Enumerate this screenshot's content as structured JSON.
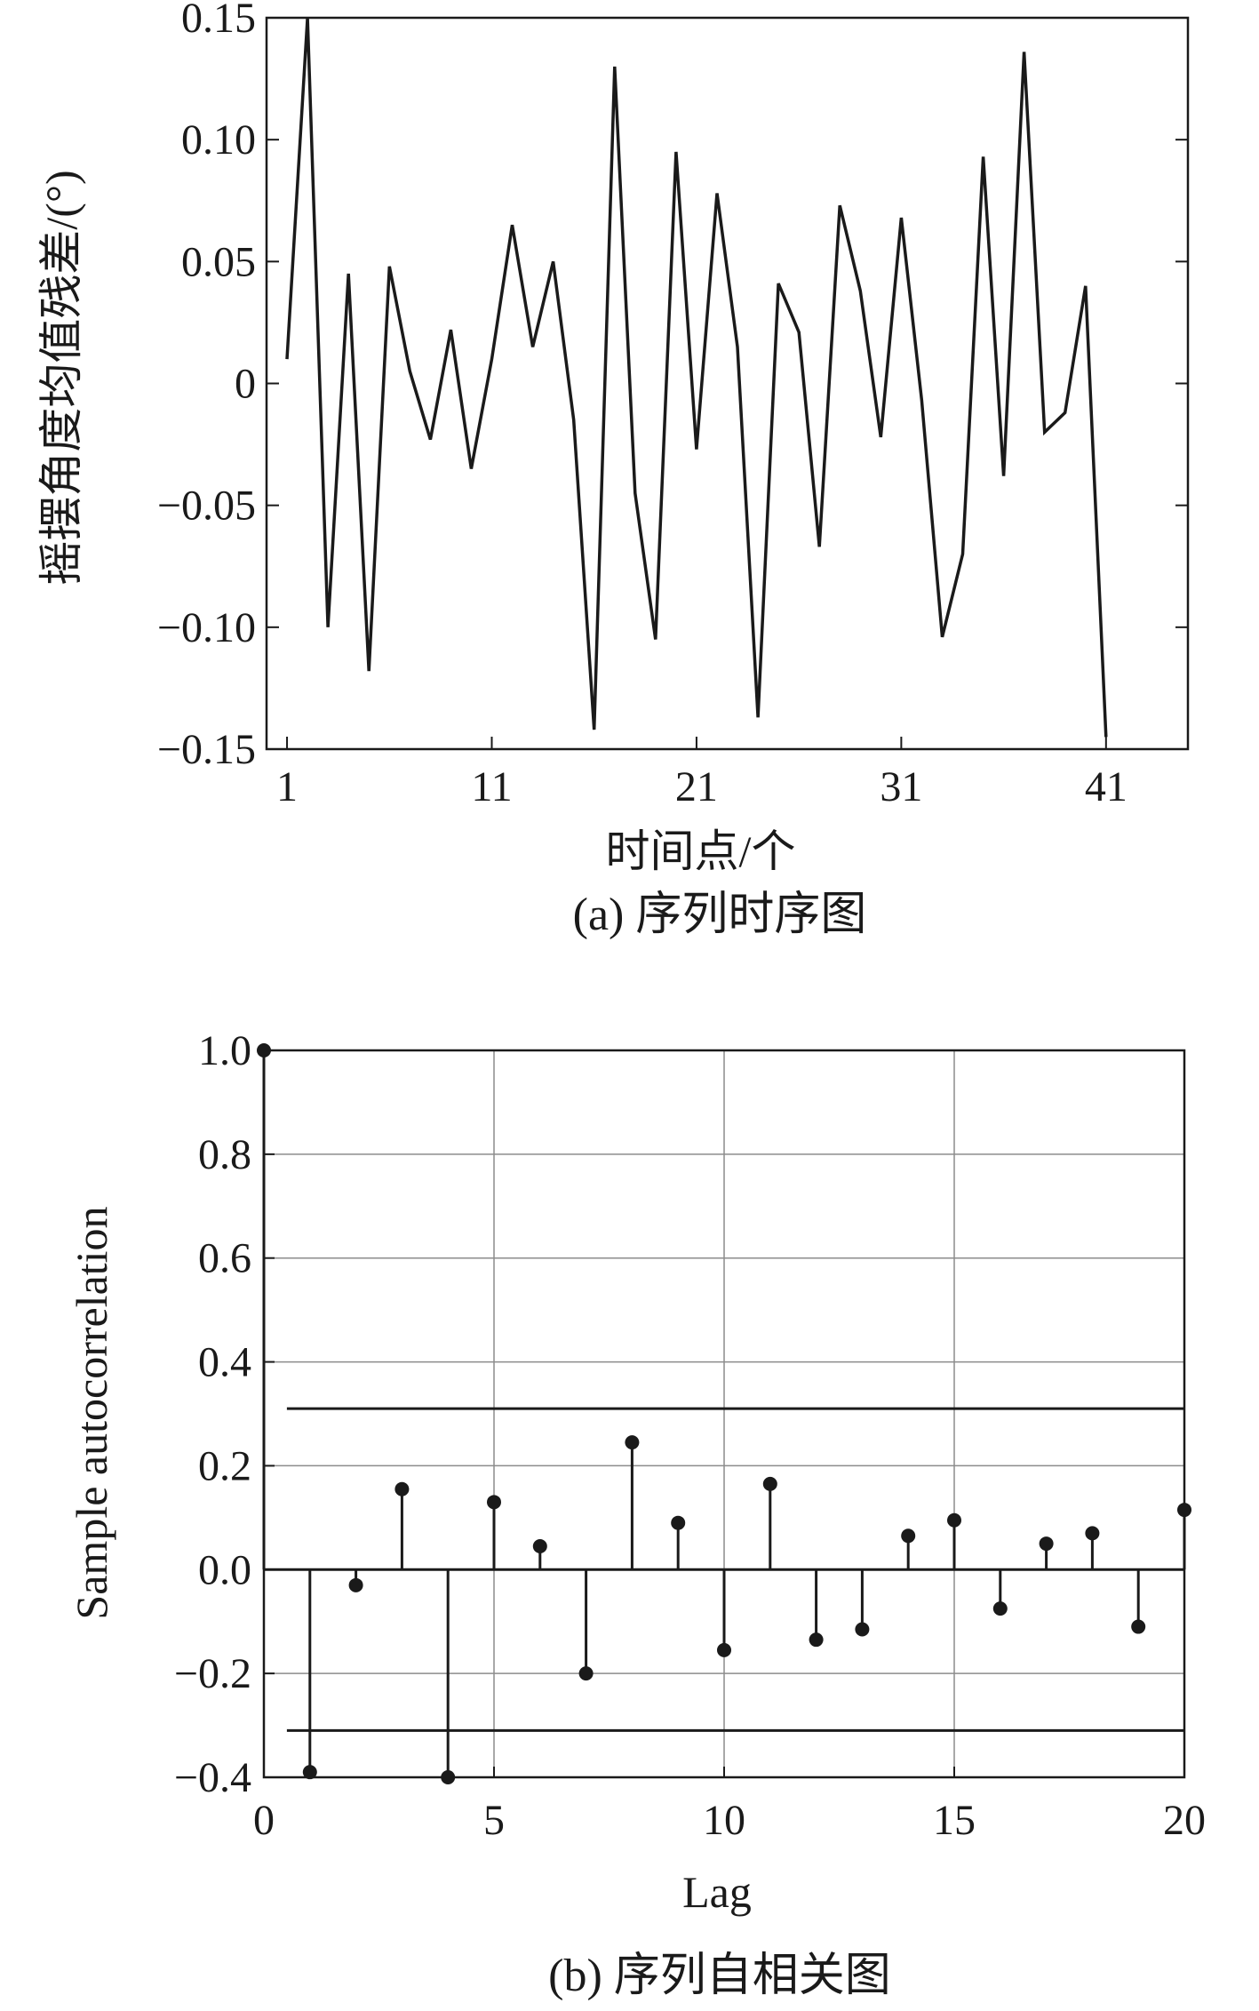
{
  "chart_data": [
    {
      "type": "line",
      "caption": "(a) 序列时序图",
      "xlabel": "时间点/个",
      "ylabel": "摇摆角度均值残差/(°)",
      "xlim": [
        0,
        45
      ],
      "ylim": [
        -0.15,
        0.15
      ],
      "xticks": [
        "1",
        "11",
        "21",
        "31",
        "41"
      ],
      "xtick_values": [
        1,
        11,
        21,
        31,
        41
      ],
      "yticks": [
        "0.15",
        "0.10",
        "0.05",
        "0",
        "−0.05",
        "−0.10",
        "−0.15"
      ],
      "ytick_values": [
        0.15,
        0.1,
        0.05,
        0,
        -0.05,
        -0.1,
        -0.15
      ],
      "grid": false,
      "series": [
        {
          "x": [
            1,
            2,
            3,
            4,
            5,
            6,
            7,
            8,
            9,
            10,
            11,
            12,
            13,
            14,
            15,
            16,
            17,
            18,
            19,
            20,
            21,
            22,
            23,
            24,
            25,
            26,
            27,
            28,
            29,
            30,
            31,
            32,
            33,
            34,
            35,
            36,
            37,
            38,
            39,
            40,
            41
          ],
          "y": [
            0.01,
            0.15,
            -0.1,
            0.045,
            -0.118,
            0.048,
            0.005,
            -0.023,
            0.022,
            -0.035,
            0.01,
            0.065,
            0.015,
            0.05,
            -0.015,
            -0.142,
            0.13,
            -0.045,
            -0.105,
            0.095,
            -0.027,
            0.078,
            0.015,
            -0.137,
            0.041,
            0.021,
            -0.067,
            0.073,
            0.038,
            -0.022,
            0.068,
            -0.007,
            -0.104,
            -0.07,
            0.093,
            -0.038,
            0.136,
            -0.02,
            -0.012,
            0.04,
            -0.145
          ]
        }
      ]
    },
    {
      "type": "stem",
      "caption": "(b) 序列自相关图",
      "xlabel": "Lag",
      "ylabel": "Sample autocorrelation",
      "xlim": [
        0,
        20
      ],
      "ylim": [
        -0.4,
        1.0
      ],
      "xticks": [
        "0",
        "5",
        "10",
        "15",
        "20"
      ],
      "xtick_values": [
        0,
        5,
        10,
        15,
        20
      ],
      "yticks": [
        "1.0",
        "0.8",
        "0.6",
        "0.4",
        "0.2",
        "0.0",
        "−0.2",
        "−0.4"
      ],
      "ytick_values": [
        1.0,
        0.8,
        0.6,
        0.4,
        0.2,
        0.0,
        -0.2,
        -0.4
      ],
      "grid": true,
      "confidence_bounds": [
        0.31,
        -0.31
      ],
      "series": [
        {
          "x": [
            0,
            1,
            2,
            3,
            4,
            5,
            6,
            7,
            8,
            9,
            10,
            11,
            12,
            13,
            14,
            15,
            16,
            17,
            18,
            19,
            20
          ],
          "y": [
            1.0,
            -0.39,
            -0.03,
            0.155,
            -0.4,
            0.13,
            0.045,
            -0.2,
            0.245,
            0.09,
            -0.155,
            0.165,
            -0.135,
            -0.115,
            0.065,
            0.095,
            -0.075,
            0.05,
            0.07,
            -0.11,
            0.115
          ]
        }
      ]
    }
  ]
}
